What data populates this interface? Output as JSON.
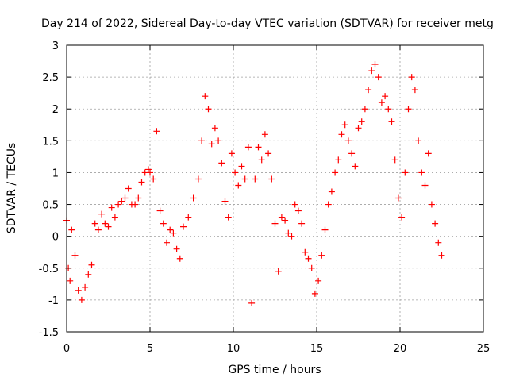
{
  "chart_data": {
    "type": "scatter",
    "title": "Day 214 of 2022, Sidereal Day-to-day VTEC variation (SDTVAR) for receiver metg",
    "xlabel": "GPS time / hours",
    "ylabel": "SDTVAR / TECUs",
    "xlim": [
      0,
      25
    ],
    "ylim": [
      -1.5,
      3
    ],
    "xticks": [
      "0",
      "5",
      "10",
      "15",
      "20",
      "25"
    ],
    "yticks": [
      "-1.5",
      "-1",
      "-0.5",
      "0",
      "0.5",
      "1",
      "1.5",
      "2",
      "2.5",
      "3"
    ],
    "grid": true,
    "marker": "plus",
    "series": [
      {
        "name": "SDTVAR",
        "color": "#ff0000",
        "x": [
          0.0,
          0.1,
          0.2,
          0.3,
          0.5,
          0.7,
          0.9,
          1.1,
          1.3,
          1.5,
          1.7,
          1.9,
          2.1,
          2.3,
          2.5,
          2.7,
          2.9,
          3.1,
          3.3,
          3.5,
          3.7,
          3.9,
          4.1,
          4.3,
          4.5,
          4.7,
          4.9,
          5.0,
          5.2,
          5.4,
          5.6,
          5.8,
          6.0,
          6.2,
          6.4,
          6.6,
          6.8,
          7.0,
          7.3,
          7.6,
          7.9,
          8.1,
          8.3,
          8.5,
          8.7,
          8.9,
          9.1,
          9.3,
          9.5,
          9.7,
          9.9,
          10.1,
          10.3,
          10.5,
          10.7,
          10.9,
          11.1,
          11.3,
          11.5,
          11.7,
          11.9,
          12.1,
          12.3,
          12.5,
          12.7,
          12.9,
          13.1,
          13.3,
          13.5,
          13.7,
          13.9,
          14.1,
          14.3,
          14.5,
          14.7,
          14.9,
          15.1,
          15.3,
          15.5,
          15.7,
          15.9,
          16.1,
          16.3,
          16.5,
          16.7,
          16.9,
          17.1,
          17.3,
          17.5,
          17.7,
          17.9,
          18.1,
          18.3,
          18.5,
          18.7,
          18.9,
          19.1,
          19.3,
          19.5,
          19.7,
          19.9,
          20.1,
          20.3,
          20.5,
          20.7,
          20.9,
          21.1,
          21.3,
          21.5,
          21.7,
          21.9,
          22.1,
          22.3,
          22.5
        ],
        "y": [
          0.25,
          -0.5,
          -0.7,
          0.1,
          -0.3,
          -0.85,
          -1.0,
          -0.8,
          -0.6,
          -0.45,
          0.2,
          0.1,
          0.35,
          0.2,
          0.15,
          0.45,
          0.3,
          0.5,
          0.55,
          0.6,
          0.75,
          0.5,
          0.5,
          0.6,
          0.85,
          1.0,
          1.05,
          1.0,
          0.9,
          1.65,
          0.4,
          0.2,
          -0.1,
          0.1,
          0.05,
          -0.2,
          -0.35,
          0.15,
          0.3,
          0.6,
          0.9,
          1.5,
          2.2,
          2.0,
          1.45,
          1.7,
          1.5,
          1.15,
          0.55,
          0.3,
          1.3,
          1.0,
          0.8,
          1.1,
          0.9,
          1.4,
          -1.05,
          0.9,
          1.4,
          1.2,
          1.6,
          1.3,
          0.9,
          0.2,
          -0.55,
          0.3,
          0.25,
          0.05,
          0.0,
          0.5,
          0.4,
          0.2,
          -0.25,
          -0.35,
          -0.5,
          -0.9,
          -0.7,
          -0.3,
          0.1,
          0.5,
          0.7,
          1.0,
          1.2,
          1.6,
          1.75,
          1.5,
          1.3,
          1.1,
          1.7,
          1.8,
          2.0,
          2.3,
          2.6,
          2.7,
          2.5,
          2.1,
          2.2,
          2.0,
          1.8,
          1.2,
          0.6,
          0.3,
          1.0,
          2.0,
          2.5,
          2.3,
          1.5,
          1.0,
          0.8,
          1.3,
          0.5,
          0.2,
          -0.1,
          -0.3
        ]
      }
    ]
  }
}
